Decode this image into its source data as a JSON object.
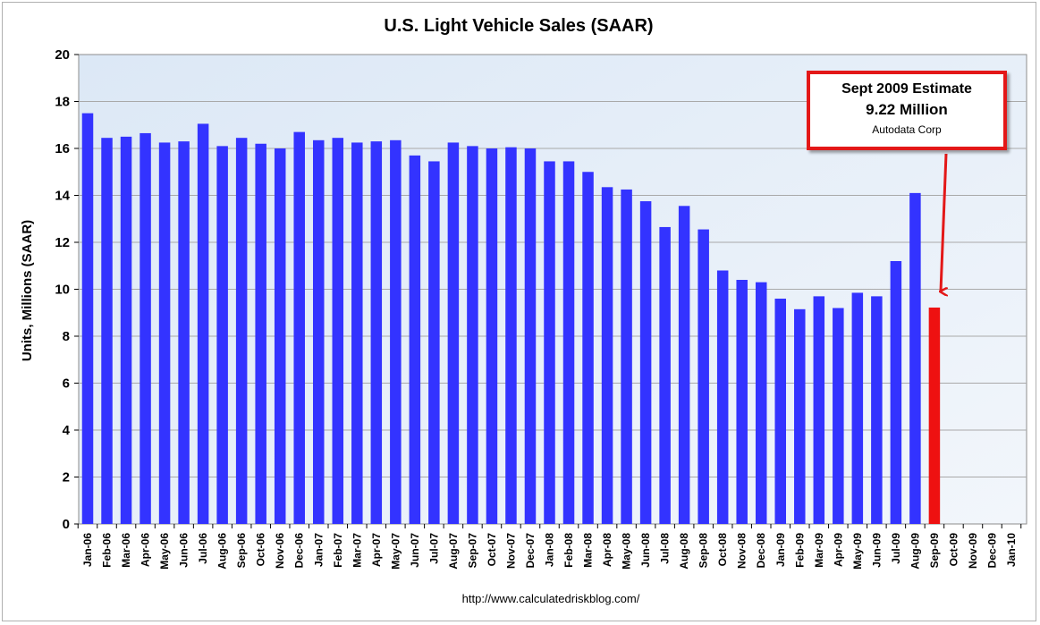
{
  "chart_data": {
    "type": "bar",
    "title": "U.S. Light Vehicle Sales (SAAR)",
    "ylabel": "Units, Millions (SAAR)",
    "xlabel": "",
    "ylim": [
      0,
      20
    ],
    "yticks": [
      0,
      2,
      4,
      6,
      8,
      10,
      12,
      14,
      16,
      18,
      20
    ],
    "grid": true,
    "categories": [
      "Jan-06",
      "Feb-06",
      "Mar-06",
      "Apr-06",
      "May-06",
      "Jun-06",
      "Jul-06",
      "Aug-06",
      "Sep-06",
      "Oct-06",
      "Nov-06",
      "Dec-06",
      "Jan-07",
      "Feb-07",
      "Mar-07",
      "Apr-07",
      "May-07",
      "Jun-07",
      "Jul-07",
      "Aug-07",
      "Sep-07",
      "Oct-07",
      "Nov-07",
      "Dec-07",
      "Jan-08",
      "Feb-08",
      "Mar-08",
      "Apr-08",
      "May-08",
      "Jun-08",
      "Jul-08",
      "Aug-08",
      "Sep-08",
      "Oct-08",
      "Nov-08",
      "Dec-08",
      "Jan-09",
      "Feb-09",
      "Mar-09",
      "Apr-09",
      "May-09",
      "Jun-09",
      "Jul-09",
      "Aug-09",
      "Sep-09",
      "Oct-09",
      "Nov-09",
      "Dec-09",
      "Jan-10"
    ],
    "values": [
      17.5,
      16.45,
      16.5,
      16.65,
      16.25,
      16.3,
      17.05,
      16.1,
      16.45,
      16.2,
      16.0,
      16.7,
      16.35,
      16.45,
      16.25,
      16.3,
      16.35,
      15.7,
      15.45,
      16.25,
      16.1,
      16.0,
      16.05,
      16.0,
      15.45,
      15.45,
      15.0,
      14.35,
      14.25,
      13.75,
      12.65,
      13.55,
      12.55,
      10.8,
      10.4,
      10.3,
      9.6,
      9.15,
      9.7,
      9.2,
      9.85,
      9.7,
      11.2,
      14.1,
      9.22,
      null,
      null,
      null,
      null
    ],
    "colors": {
      "bar": "#3333ff",
      "highlight": "#ee1111",
      "plot_bg": "#e4eef8",
      "grid": "#a9a9a9"
    },
    "highlight_index": 44,
    "annotation": {
      "line1": "Sept 2009 Estimate",
      "line2": "9.22 Million",
      "line3": "Autodata Corp"
    },
    "source": "http://www.calculatedriskblog.com/"
  }
}
